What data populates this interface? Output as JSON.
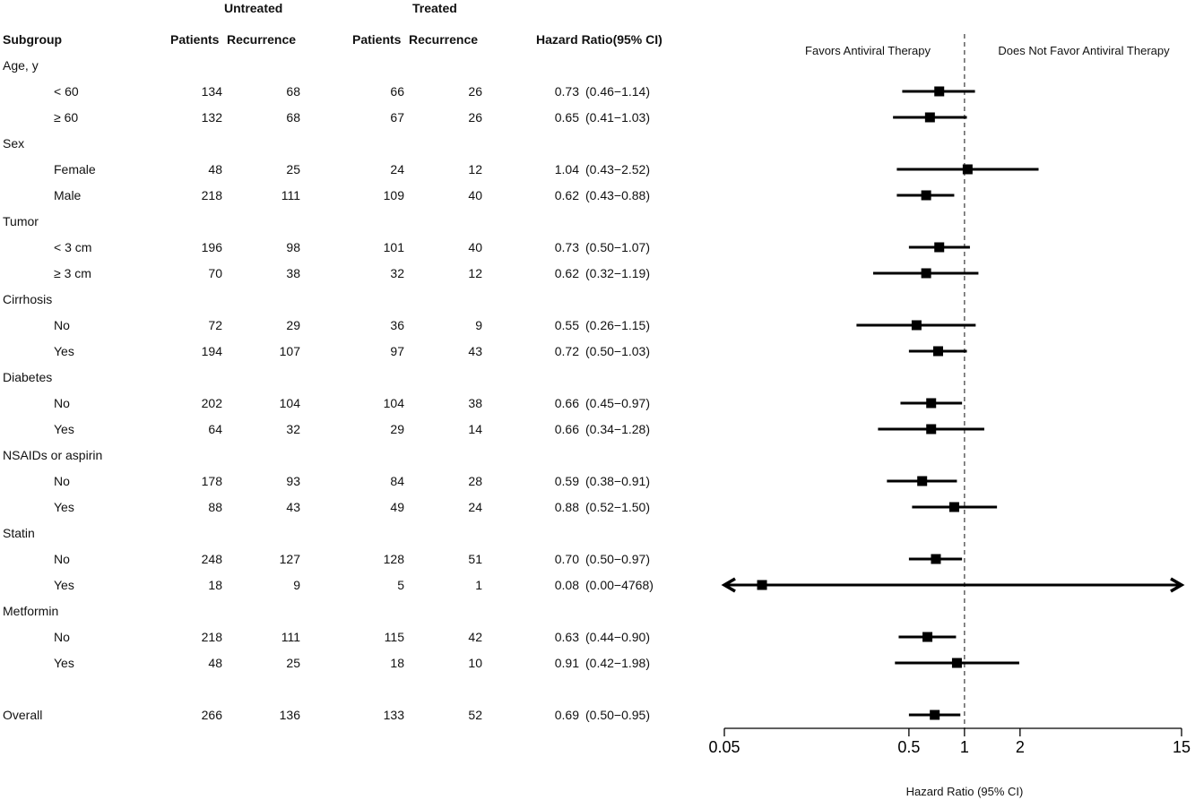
{
  "chart_data": {
    "type": "forest",
    "headers": {
      "untreated": "Untreated",
      "treated": "Treated",
      "subgroup": "Subgroup",
      "patients_untreated": "Patients",
      "recurrence_untreated": "Recurrence",
      "patients_treated": "Patients",
      "recurrence_treated": "Recurrence",
      "hr_col": "Hazard Ratio(95% CI)"
    },
    "left_label": "Favors Antiviral Therapy",
    "right_label": "Does Not Favor Antiviral Therapy",
    "xlabel": "Hazard Ratio (95% CI)",
    "x_scale": "log",
    "xlim": [
      0.05,
      15
    ],
    "x_ticks": [
      0.05,
      0.5,
      1,
      2,
      15
    ],
    "x_tick_labels": [
      "0.05",
      "0.5",
      "1",
      "2",
      "15"
    ],
    "reference_line": 1,
    "rows": [
      {
        "kind": "group",
        "label": "Age, y"
      },
      {
        "kind": "sub",
        "label": "< 60",
        "pu": "134",
        "ru": "68",
        "pt": "66",
        "rt": "26",
        "hr": 0.73,
        "lo": 0.46,
        "hi": 1.14,
        "hr_text": "0.73",
        "ci_text": "(0.46−1.14)"
      },
      {
        "kind": "sub",
        "label": "≥ 60",
        "pu": "132",
        "ru": "68",
        "pt": "67",
        "rt": "26",
        "hr": 0.65,
        "lo": 0.41,
        "hi": 1.03,
        "hr_text": "0.65",
        "ci_text": "(0.41−1.03)"
      },
      {
        "kind": "group",
        "label": "Sex"
      },
      {
        "kind": "sub",
        "label": "Female",
        "pu": "48",
        "ru": "25",
        "pt": "24",
        "rt": "12",
        "hr": 1.04,
        "lo": 0.43,
        "hi": 2.52,
        "hr_text": "1.04",
        "ci_text": "(0.43−2.52)"
      },
      {
        "kind": "sub",
        "label": "Male",
        "pu": "218",
        "ru": "111",
        "pt": "109",
        "rt": "40",
        "hr": 0.62,
        "lo": 0.43,
        "hi": 0.88,
        "hr_text": "0.62",
        "ci_text": "(0.43−0.88)"
      },
      {
        "kind": "group",
        "label": "Tumor"
      },
      {
        "kind": "sub",
        "label": "< 3 cm",
        "pu": "196",
        "ru": "98",
        "pt": "101",
        "rt": "40",
        "hr": 0.73,
        "lo": 0.5,
        "hi": 1.07,
        "hr_text": "0.73",
        "ci_text": "(0.50−1.07)"
      },
      {
        "kind": "sub",
        "label": "≥ 3 cm",
        "pu": "70",
        "ru": "38",
        "pt": "32",
        "rt": "12",
        "hr": 0.62,
        "lo": 0.32,
        "hi": 1.19,
        "hr_text": "0.62",
        "ci_text": "(0.32−1.19)"
      },
      {
        "kind": "group",
        "label": "Cirrhosis"
      },
      {
        "kind": "sub",
        "label": "No",
        "pu": "72",
        "ru": "29",
        "pt": "36",
        "rt": "9",
        "hr": 0.55,
        "lo": 0.26,
        "hi": 1.15,
        "hr_text": "0.55",
        "ci_text": "(0.26−1.15)"
      },
      {
        "kind": "sub",
        "label": "Yes",
        "pu": "194",
        "ru": "107",
        "pt": "97",
        "rt": "43",
        "hr": 0.72,
        "lo": 0.5,
        "hi": 1.03,
        "hr_text": "0.72",
        "ci_text": "(0.50−1.03)"
      },
      {
        "kind": "group",
        "label": "Diabetes"
      },
      {
        "kind": "sub",
        "label": "No",
        "pu": "202",
        "ru": "104",
        "pt": "104",
        "rt": "38",
        "hr": 0.66,
        "lo": 0.45,
        "hi": 0.97,
        "hr_text": "0.66",
        "ci_text": "(0.45−0.97)"
      },
      {
        "kind": "sub",
        "label": "Yes",
        "pu": "64",
        "ru": "32",
        "pt": "29",
        "rt": "14",
        "hr": 0.66,
        "lo": 0.34,
        "hi": 1.28,
        "hr_text": "0.66",
        "ci_text": "(0.34−1.28)"
      },
      {
        "kind": "group",
        "label": "NSAIDs or aspirin"
      },
      {
        "kind": "sub",
        "label": "No",
        "pu": "178",
        "ru": "93",
        "pt": "84",
        "rt": "28",
        "hr": 0.59,
        "lo": 0.38,
        "hi": 0.91,
        "hr_text": "0.59",
        "ci_text": "(0.38−0.91)"
      },
      {
        "kind": "sub",
        "label": "Yes",
        "pu": "88",
        "ru": "43",
        "pt": "49",
        "rt": "24",
        "hr": 0.88,
        "lo": 0.52,
        "hi": 1.5,
        "hr_text": "0.88",
        "ci_text": "(0.52−1.50)"
      },
      {
        "kind": "group",
        "label": "Statin"
      },
      {
        "kind": "sub",
        "label": "No",
        "pu": "248",
        "ru": "127",
        "pt": "128",
        "rt": "51",
        "hr": 0.7,
        "lo": 0.5,
        "hi": 0.97,
        "hr_text": "0.70",
        "ci_text": "(0.50−0.97)"
      },
      {
        "kind": "sub",
        "label": "Yes",
        "pu": "18",
        "ru": "9",
        "pt": "5",
        "rt": "1",
        "hr": 0.08,
        "lo": 0.0,
        "hi": 4768,
        "hr_text": "0.08",
        "ci_text": "(0.00−4768)"
      },
      {
        "kind": "group",
        "label": "Metformin"
      },
      {
        "kind": "sub",
        "label": "No",
        "pu": "218",
        "ru": "111",
        "pt": "115",
        "rt": "42",
        "hr": 0.63,
        "lo": 0.44,
        "hi": 0.9,
        "hr_text": "0.63",
        "ci_text": "(0.44−0.90)"
      },
      {
        "kind": "sub",
        "label": "Yes",
        "pu": "48",
        "ru": "25",
        "pt": "18",
        "rt": "10",
        "hr": 0.91,
        "lo": 0.42,
        "hi": 1.98,
        "hr_text": "0.91",
        "ci_text": "(0.42−1.98)"
      },
      {
        "kind": "overall",
        "label": "Overall",
        "pu": "266",
        "ru": "136",
        "pt": "133",
        "rt": "52",
        "hr": 0.69,
        "lo": 0.5,
        "hi": 0.95,
        "hr_text": "0.69",
        "ci_text": "(0.50−0.95)"
      }
    ]
  }
}
